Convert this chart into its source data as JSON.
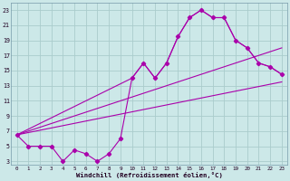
{
  "xlabel": "Windchill (Refroidissement éolien,°C)",
  "bg_color": "#cce8e8",
  "grid_color": "#aacccc",
  "line_color": "#aa00aa",
  "xlim": [
    -0.5,
    23.5
  ],
  "ylim": [
    2.5,
    24
  ],
  "xticks": [
    0,
    1,
    2,
    3,
    4,
    5,
    6,
    7,
    8,
    9,
    10,
    11,
    12,
    13,
    14,
    15,
    16,
    17,
    18,
    19,
    20,
    21,
    22,
    23
  ],
  "yticks": [
    3,
    5,
    7,
    9,
    11,
    13,
    15,
    17,
    19,
    21,
    23
  ],
  "main_x": [
    0,
    1,
    2,
    3,
    4,
    5,
    6,
    7,
    8,
    9,
    10,
    11,
    12,
    13,
    14,
    15,
    16,
    17,
    18,
    19,
    20,
    21,
    22,
    23
  ],
  "main_y": [
    6.5,
    5,
    5,
    5,
    3,
    4.5,
    4,
    3,
    4,
    6,
    14,
    16,
    14,
    16,
    19.5,
    22,
    23,
    22,
    22,
    19,
    18,
    16,
    15.5,
    14.5
  ],
  "line2_x": [
    0,
    10,
    11,
    12,
    13,
    14,
    15,
    16,
    17,
    18,
    19,
    20,
    21,
    22,
    23
  ],
  "line2_y": [
    6.5,
    14,
    16,
    14,
    16,
    19.5,
    22,
    23,
    22,
    22,
    19,
    18,
    16,
    15.5,
    14.5
  ],
  "line3_x": [
    0,
    23
  ],
  "line3_y": [
    6.5,
    18
  ],
  "line4_x": [
    0,
    23
  ],
  "line4_y": [
    6.5,
    13.5
  ]
}
